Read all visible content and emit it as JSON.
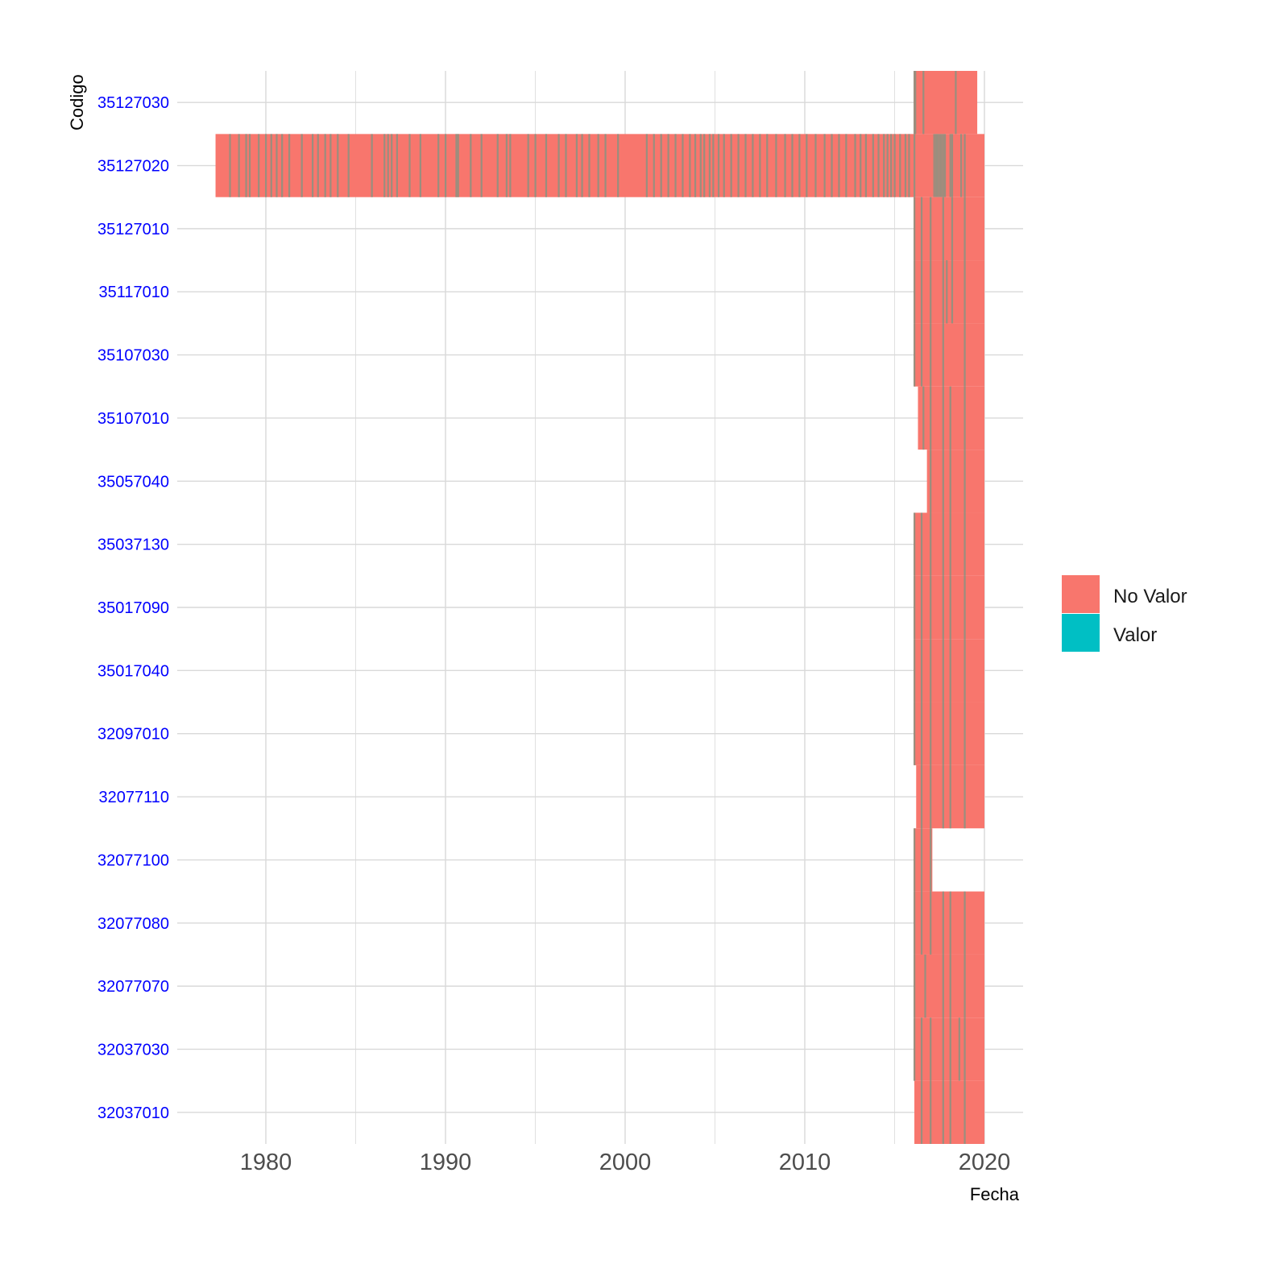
{
  "chart_data": {
    "type": "heatmap",
    "title": "",
    "xlabel": "Fecha",
    "ylabel": "Codigo",
    "x_ticks": [
      "1980",
      "1990",
      "2000",
      "2010",
      "2020"
    ],
    "xlim": [
      1975.2,
      2022.2
    ],
    "grid": true,
    "legend_position": "right",
    "legend": [
      {
        "label": "No Valor",
        "color": "#F8766D"
      },
      {
        "label": "Valor",
        "color": "#00BFC4"
      }
    ],
    "colors": {
      "no_valor": "#F8766D",
      "valor": "#00BFC4",
      "mixed_line": "#9A8E7E",
      "axis_text": "#0000FF",
      "tick_label": "#4D4D4D",
      "grid": "#D9D9D9"
    },
    "categories": [
      "35127030",
      "35127020",
      "35127010",
      "35117010",
      "35107030",
      "35107010",
      "35057040",
      "35037130",
      "35017090",
      "35017040",
      "32097010",
      "32077110",
      "32077100",
      "32077080",
      "32077070",
      "32037030",
      "32037010"
    ],
    "rows": [
      {
        "code": "35127030",
        "span": [
          2016.1,
          2019.6
        ],
        "no_valor": [
          [
            2016.1,
            2019.6
          ]
        ],
        "valor_years": [
          2016.1,
          2016.15,
          2016.6,
          2018.4
        ]
      },
      {
        "code": "35127020",
        "span": [
          1977.2,
          2020.0
        ],
        "no_valor": [
          [
            1977.2,
            2020.0
          ]
        ],
        "valor_years": [
          1978.0,
          1978.5,
          1978.9,
          1979.1,
          1979.6,
          1980.0,
          1980.3,
          1980.6,
          1980.9,
          1981.3,
          1982.0,
          1982.6,
          1982.9,
          1983.3,
          1983.6,
          1984.0,
          1984.6,
          1985.9,
          1986.6,
          1986.8,
          1987.0,
          1987.3,
          1988.0,
          1988.6,
          1989.6,
          1990.0,
          1990.6,
          1990.7,
          1991.4,
          1992.0,
          1992.9,
          1993.4,
          1993.6,
          1994.6,
          1995.0,
          1995.6,
          1996.3,
          1996.7,
          1997.3,
          1997.6,
          1998.0,
          1998.5,
          1998.9,
          1999.6,
          2001.2,
          2001.6,
          2002.0,
          2002.4,
          2002.8,
          2003.2,
          2003.6,
          2003.9,
          2004.2,
          2004.4,
          2004.7,
          2004.9,
          2005.2,
          2005.5,
          2005.9,
          2006.3,
          2006.7,
          2007.1,
          2007.5,
          2007.9,
          2008.4,
          2008.9,
          2009.3,
          2009.7,
          2010.1,
          2010.6,
          2011.1,
          2011.5,
          2011.9,
          2012.3,
          2012.8,
          2013.1,
          2013.4,
          2013.8,
          2014.1,
          2014.4,
          2014.6,
          2014.8,
          2015.0,
          2015.3,
          2015.6,
          2015.8,
          2016.1,
          2017.2,
          2017.3,
          2017.4,
          2017.5,
          2017.6,
          2017.7,
          2017.8,
          2018.1,
          2018.2,
          2018.7,
          2018.9
        ]
      },
      {
        "code": "35127010",
        "span": [
          2016.1,
          2020.0
        ],
        "no_valor": [
          [
            2016.1,
            2020.0
          ]
        ],
        "valor_years": [
          2016.1,
          2016.5,
          2017.0,
          2017.7,
          2018.2,
          2018.9
        ]
      },
      {
        "code": "35117010",
        "span": [
          2016.1,
          2020.0
        ],
        "no_valor": [
          [
            2016.1,
            2020.0
          ]
        ],
        "valor_years": [
          2016.1,
          2016.5,
          2017.0,
          2017.7,
          2017.9,
          2018.2,
          2018.9
        ]
      },
      {
        "code": "35107030",
        "span": [
          2016.1,
          2020.0
        ],
        "no_valor": [
          [
            2016.1,
            2020.0
          ]
        ],
        "valor_years": [
          2016.1,
          2016.5,
          2017.0,
          2017.7,
          2018.9
        ]
      },
      {
        "code": "35107010",
        "span": [
          2016.3,
          2020.0
        ],
        "no_valor": [
          [
            2016.3,
            2020.0
          ]
        ],
        "valor_years": [
          2016.6,
          2017.0,
          2017.7,
          2018.1,
          2018.9
        ]
      },
      {
        "code": "35057040",
        "span": [
          2016.8,
          2020.0
        ],
        "no_valor": [
          [
            2016.8,
            2020.0
          ]
        ],
        "valor_years": [
          2017.0,
          2017.7,
          2018.1,
          2018.9
        ]
      },
      {
        "code": "35037130",
        "span": [
          2016.1,
          2020.0
        ],
        "no_valor": [
          [
            2016.1,
            2020.0
          ]
        ],
        "valor_years": [
          2016.1,
          2016.5,
          2017.0,
          2017.7,
          2018.1,
          2018.9
        ]
      },
      {
        "code": "35017090",
        "span": [
          2016.1,
          2020.0
        ],
        "no_valor": [
          [
            2016.1,
            2020.0
          ]
        ],
        "valor_years": [
          2016.1,
          2016.5,
          2017.0,
          2017.7,
          2018.1,
          2018.9
        ]
      },
      {
        "code": "35017040",
        "span": [
          2016.1,
          2020.0
        ],
        "no_valor": [
          [
            2016.1,
            2020.0
          ]
        ],
        "valor_years": [
          2016.1,
          2016.5,
          2017.0,
          2017.7,
          2018.1,
          2018.9
        ]
      },
      {
        "code": "32097010",
        "span": [
          2016.1,
          2020.0
        ],
        "no_valor": [
          [
            2016.1,
            2020.0
          ]
        ],
        "valor_years": [
          2016.1,
          2016.5,
          2017.0,
          2017.7,
          2018.1,
          2018.9
        ]
      },
      {
        "code": "32077110",
        "span": [
          2016.2,
          2020.0
        ],
        "no_valor": [
          [
            2016.2,
            2020.0
          ]
        ],
        "valor_years": [
          2016.5,
          2017.0,
          2017.7,
          2018.1,
          2018.9
        ]
      },
      {
        "code": "32077100",
        "span": [
          2016.1,
          2017.1
        ],
        "no_valor": [
          [
            2016.1,
            2017.1
          ]
        ],
        "valor_years": [
          2016.1,
          2016.5,
          2017.0
        ]
      },
      {
        "code": "32077080",
        "span": [
          2016.1,
          2020.0
        ],
        "no_valor": [
          [
            2016.1,
            2020.0
          ]
        ],
        "valor_years": [
          2016.1,
          2016.5,
          2017.0,
          2017.7,
          2018.1,
          2018.9
        ]
      },
      {
        "code": "32077070",
        "span": [
          2016.1,
          2020.0
        ],
        "no_valor": [
          [
            2016.1,
            2020.0
          ]
        ],
        "valor_years": [
          2016.1,
          2016.7,
          2017.7,
          2018.1,
          2018.9
        ]
      },
      {
        "code": "32037030",
        "span": [
          2016.1,
          2020.0
        ],
        "no_valor": [
          [
            2016.1,
            2020.0
          ]
        ],
        "valor_years": [
          2016.1,
          2016.5,
          2017.0,
          2017.7,
          2018.1,
          2018.6,
          2018.9
        ]
      },
      {
        "code": "32037010",
        "span": [
          2016.1,
          2020.0
        ],
        "no_valor": [
          [
            2016.1,
            2020.0
          ]
        ],
        "valor_years": [
          2016.5,
          2017.0,
          2017.7,
          2018.1,
          2018.9
        ]
      }
    ]
  }
}
